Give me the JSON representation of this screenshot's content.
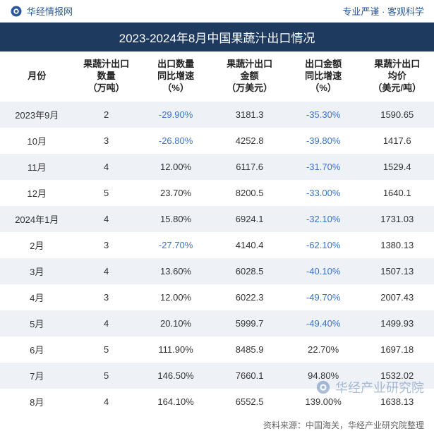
{
  "header": {
    "site_name": "华经情报网",
    "tagline": "专业严谨  ·  客观科学",
    "logo_color": "#2a5899"
  },
  "title": "2023-2024年8月中国果蔬汁出口情况",
  "table": {
    "type": "table",
    "columns": [
      "月份",
      "果蔬汁出口\n数量\n（万吨）",
      "出口数量\n同比增速\n（%）",
      "果蔬汁出口\n金额\n（万美元）",
      "出口金额\n同比增速\n（%）",
      "果蔬汁出口\n均价\n（美元/吨）"
    ],
    "col_widths": [
      "17%",
      "15%",
      "17%",
      "17%",
      "17%",
      "17%"
    ],
    "header_fontsize": 13,
    "cell_fontsize": 13,
    "row_bg_odd": "#eef2f7",
    "row_bg_even": "#ffffff",
    "neg_color": "#3b74c5",
    "pos_color": "#333333",
    "rows": [
      {
        "month": "2023年9月",
        "qty": "2",
        "qty_yoy": "-29.90%",
        "qty_neg": true,
        "amt": "3181.3",
        "amt_yoy": "-35.30%",
        "amt_neg": true,
        "price": "1590.65"
      },
      {
        "month": "10月",
        "qty": "3",
        "qty_yoy": "-26.80%",
        "qty_neg": true,
        "amt": "4252.8",
        "amt_yoy": "-39.80%",
        "amt_neg": true,
        "price": "1417.6"
      },
      {
        "month": "11月",
        "qty": "4",
        "qty_yoy": "12.00%",
        "qty_neg": false,
        "amt": "6117.6",
        "amt_yoy": "-31.70%",
        "amt_neg": true,
        "price": "1529.4"
      },
      {
        "month": "12月",
        "qty": "5",
        "qty_yoy": "23.70%",
        "qty_neg": false,
        "amt": "8200.5",
        "amt_yoy": "-33.00%",
        "amt_neg": true,
        "price": "1640.1"
      },
      {
        "month": "2024年1月",
        "qty": "4",
        "qty_yoy": "15.80%",
        "qty_neg": false,
        "amt": "6924.1",
        "amt_yoy": "-32.10%",
        "amt_neg": true,
        "price": "1731.03"
      },
      {
        "month": "2月",
        "qty": "3",
        "qty_yoy": "-27.70%",
        "qty_neg": true,
        "amt": "4140.4",
        "amt_yoy": "-62.10%",
        "amt_neg": true,
        "price": "1380.13"
      },
      {
        "month": "3月",
        "qty": "4",
        "qty_yoy": "13.60%",
        "qty_neg": false,
        "amt": "6028.5",
        "amt_yoy": "-40.10%",
        "amt_neg": true,
        "price": "1507.13"
      },
      {
        "month": "4月",
        "qty": "3",
        "qty_yoy": "12.00%",
        "qty_neg": false,
        "amt": "6022.3",
        "amt_yoy": "-49.70%",
        "amt_neg": true,
        "price": "2007.43"
      },
      {
        "month": "5月",
        "qty": "4",
        "qty_yoy": "20.10%",
        "qty_neg": false,
        "amt": "5999.7",
        "amt_yoy": "-49.40%",
        "amt_neg": true,
        "price": "1499.93"
      },
      {
        "month": "6月",
        "qty": "5",
        "qty_yoy": "111.90%",
        "qty_neg": false,
        "amt": "8485.9",
        "amt_yoy": "22.70%",
        "amt_neg": false,
        "price": "1697.18"
      },
      {
        "month": "7月",
        "qty": "5",
        "qty_yoy": "146.50%",
        "qty_neg": false,
        "amt": "7660.1",
        "amt_yoy": "94.80%",
        "amt_neg": false,
        "price": "1532.02"
      },
      {
        "month": "8月",
        "qty": "4",
        "qty_yoy": "164.10%",
        "qty_neg": false,
        "amt": "6552.5",
        "amt_yoy": "139.00%",
        "amt_neg": false,
        "price": "1638.13"
      }
    ]
  },
  "source": "资料来源：中国海关，华经产业研究院整理",
  "watermark": "华经产业研究院",
  "colors": {
    "title_bg": "#1f3a5f",
    "title_fg": "#ffffff",
    "header_fg": "#2a5899"
  }
}
